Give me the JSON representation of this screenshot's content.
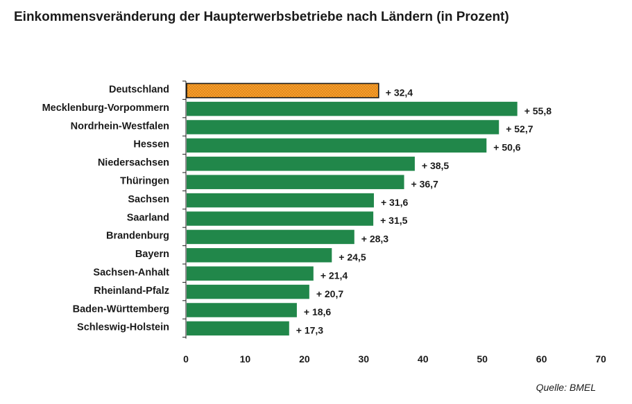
{
  "chart_data": {
    "type": "bar",
    "orientation": "horizontal",
    "title": "Einkommensveränderung der Haupterwerbsbetriebe nach Ländern (in Prozent)",
    "categories": [
      "Deutschland",
      "Mecklenburg-Vorpommern",
      "Nordrhein-Westfalen",
      "Hessen",
      "Niedersachsen",
      "Thüringen",
      "Sachsen",
      "Saarland",
      "Brandenburg",
      "Bayern",
      "Sachsen-Anhalt",
      "Rheinland-Pfalz",
      "Baden-Württemberg",
      "Schleswig-Holstein"
    ],
    "values": [
      32.4,
      55.8,
      52.7,
      50.6,
      38.5,
      36.7,
      31.6,
      31.5,
      28.3,
      24.5,
      21.4,
      20.7,
      18.6,
      17.3
    ],
    "data_labels": [
      "+ 32,4",
      "+ 55,8",
      "+ 52,7",
      "+ 50,6",
      "+ 38,5",
      "+ 36,7",
      "+ 31,6",
      "+ 31,5",
      "+ 28,3",
      "+ 24,5",
      "+ 21,4",
      "+ 20,7",
      "+ 18,6",
      "+ 17,3"
    ],
    "xlim": [
      0,
      70
    ],
    "xticks": [
      "0",
      "10",
      "20",
      "30",
      "40",
      "50",
      "60",
      "70"
    ],
    "xlabel": "",
    "ylabel": "",
    "grid": false,
    "colors": {
      "bar": "#21874a",
      "highlight_bar": "#f59d2a",
      "highlight_outline": "#1a1a1a"
    },
    "highlight_category": "Deutschland",
    "source": "Quelle: BMEL"
  }
}
